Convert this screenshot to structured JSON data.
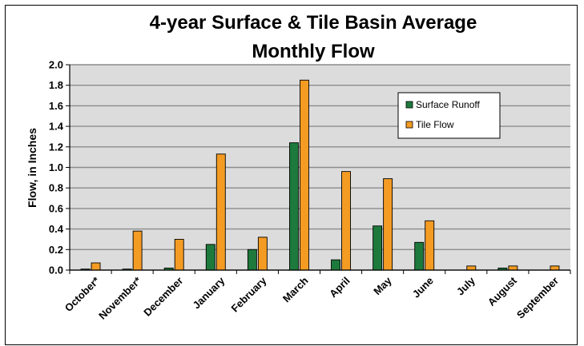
{
  "chart_data": {
    "type": "bar",
    "title_line1": "4-year Surface & Tile Basin Average",
    "title_line2": "Monthly Flow",
    "xlabel": "",
    "ylabel": "Flow, in Inches",
    "ylim": [
      0,
      2.0
    ],
    "yticks": [
      "0.0",
      "0.2",
      "0.4",
      "0.6",
      "0.8",
      "1.0",
      "1.2",
      "1.4",
      "1.6",
      "1.8",
      "2.0"
    ],
    "grid": true,
    "legend_placement": "upper-right",
    "categories": [
      "October*",
      "November*",
      "December",
      "January",
      "February",
      "March",
      "April",
      "May",
      "June",
      "July",
      "August",
      "September"
    ],
    "series": [
      {
        "name": "Surface Runoff",
        "color": "#1e7a3c",
        "values": [
          0.01,
          0.01,
          0.02,
          0.25,
          0.2,
          1.24,
          0.1,
          0.43,
          0.27,
          0.0,
          0.02,
          0.0
        ]
      },
      {
        "name": "Tile Flow",
        "color": "#f39b23",
        "values": [
          0.07,
          0.38,
          0.3,
          1.13,
          0.32,
          1.85,
          0.96,
          0.89,
          0.48,
          0.04,
          0.04,
          0.04
        ]
      }
    ],
    "plot_background": "#dcdcdc"
  }
}
